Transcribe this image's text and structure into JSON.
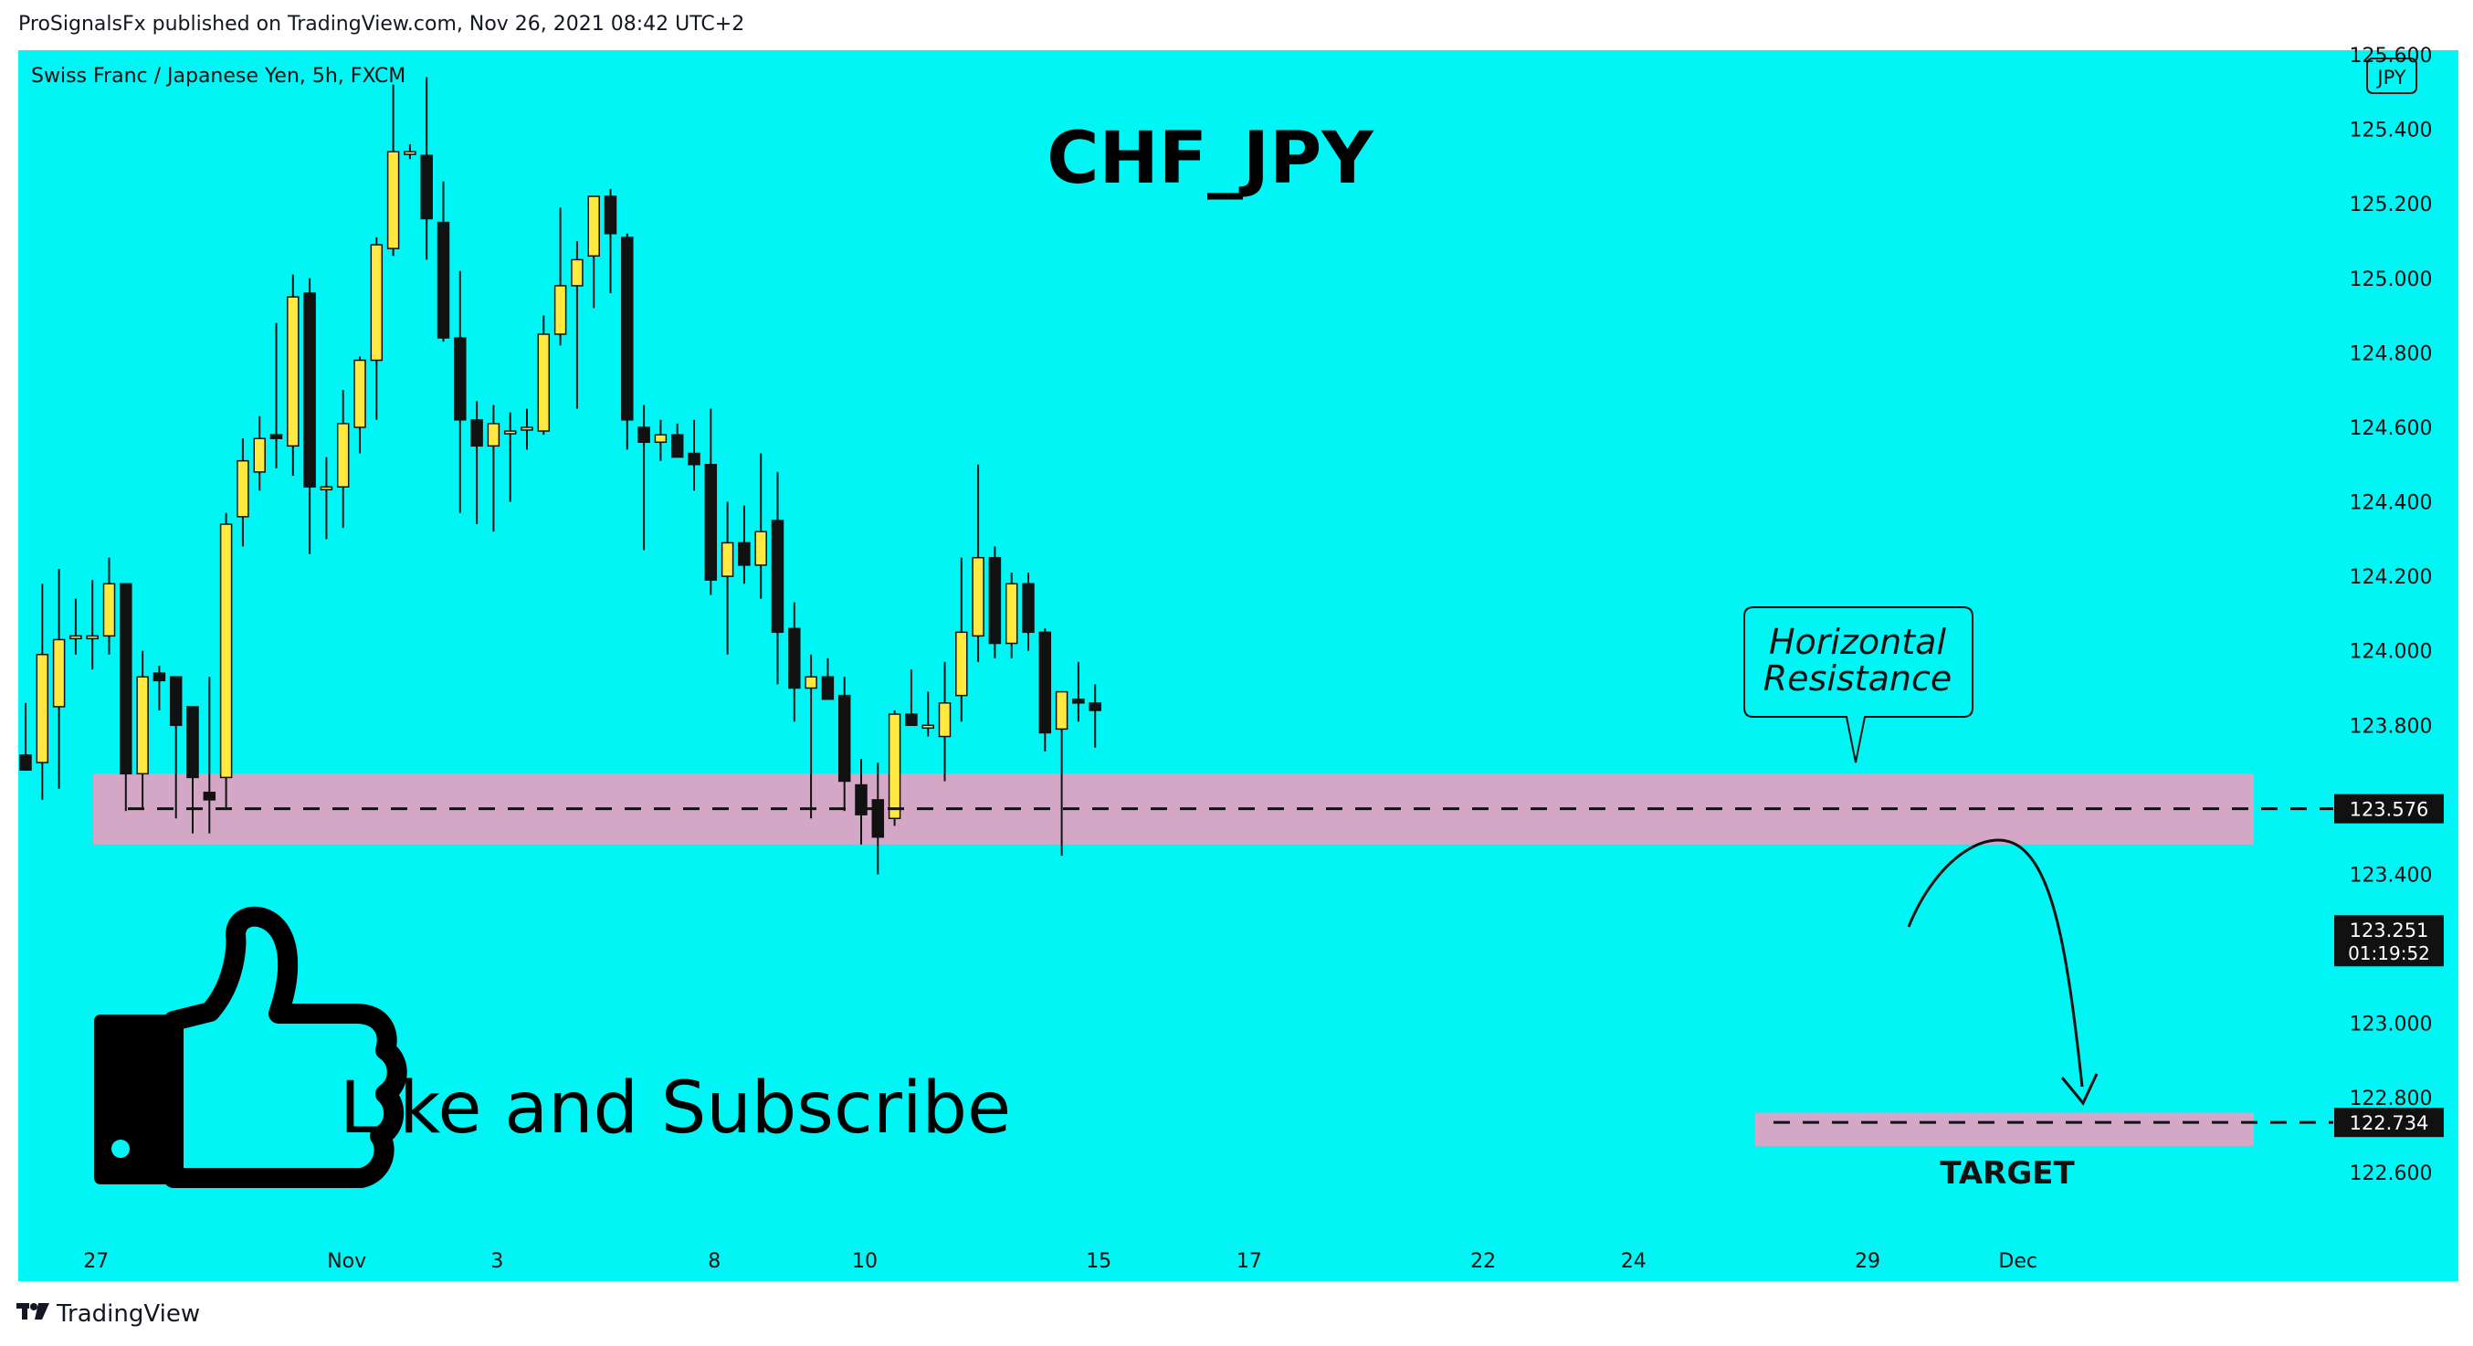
{
  "header": {
    "published": "ProSignalsFx published on TradingView.com, Nov 26, 2021 08:42 UTC+2"
  },
  "footer": {
    "brand": "TradingView"
  },
  "colors": {
    "background": "#00f5f5",
    "bull": "#ffe840",
    "bear": "#111111",
    "zone": "#d4a7c6",
    "text": "#111111"
  },
  "chart_data": {
    "type": "candlestick",
    "symbol": "Swiss Franc / Japanese Yen, 5h, FXCM",
    "title": "CHF_JPY",
    "currency_badge": "JPY",
    "ylim": [
      122.45,
      125.6
    ],
    "y_ticks": [
      "125.600",
      "125.400",
      "125.200",
      "125.000",
      "124.800",
      "124.600",
      "124.400",
      "124.200",
      "124.000",
      "123.800",
      "123.400",
      "123.000",
      "122.800",
      "122.600"
    ],
    "x_ticks": [
      {
        "label": "27",
        "index": 4
      },
      {
        "label": "Nov",
        "index": 19
      },
      {
        "label": "3",
        "index": 28
      },
      {
        "label": "8",
        "index": 41
      },
      {
        "label": "10",
        "index": 50
      },
      {
        "label": "15",
        "index": 64
      },
      {
        "label": "17",
        "index": 73
      },
      {
        "label": "22",
        "index": 87
      },
      {
        "label": "24",
        "index": 96
      },
      {
        "label": "29",
        "index": 110
      },
      {
        "label": "Dec",
        "index": 119
      }
    ],
    "price_labels": [
      {
        "value": "123.576",
        "price": 123.576
      },
      {
        "value": "123.251",
        "price": 123.251,
        "countdown": "01:19:52"
      },
      {
        "value": "122.734",
        "price": 122.734
      }
    ],
    "zones": [
      {
        "name": "resistance",
        "from": 123.48,
        "to": 123.67,
        "start": 4,
        "end": 124
      },
      {
        "name": "target",
        "from": 122.67,
        "to": 122.76,
        "start": 96,
        "end": 124
      }
    ],
    "annotations": {
      "resistance_label": [
        "Horizontal",
        "Resistance"
      ],
      "target_label": "TARGET",
      "cta": "Like and Subscribe"
    },
    "candles": [
      {
        "o": 123.72,
        "h": 123.86,
        "l": 123.68,
        "c": 123.68
      },
      {
        "o": 123.7,
        "h": 124.18,
        "l": 123.6,
        "c": 123.99
      },
      {
        "o": 123.85,
        "h": 124.22,
        "l": 123.63,
        "c": 124.03
      },
      {
        "o": 124.04,
        "h": 124.14,
        "l": 123.99,
        "c": 124.04
      },
      {
        "o": 124.04,
        "h": 124.19,
        "l": 123.95,
        "c": 124.04
      },
      {
        "o": 124.04,
        "h": 124.25,
        "l": 123.99,
        "c": 124.18
      },
      {
        "o": 124.18,
        "h": 124.18,
        "l": 123.57,
        "c": 123.67
      },
      {
        "o": 123.67,
        "h": 124.0,
        "l": 123.58,
        "c": 123.93
      },
      {
        "o": 123.94,
        "h": 123.96,
        "l": 123.84,
        "c": 123.92
      },
      {
        "o": 123.93,
        "h": 123.93,
        "l": 123.55,
        "c": 123.8
      },
      {
        "o": 123.85,
        "h": 123.85,
        "l": 123.51,
        "c": 123.66
      },
      {
        "o": 123.62,
        "h": 123.93,
        "l": 123.51,
        "c": 123.6
      },
      {
        "o": 123.66,
        "h": 124.37,
        "l": 123.58,
        "c": 124.34
      },
      {
        "o": 124.36,
        "h": 124.57,
        "l": 124.28,
        "c": 124.51
      },
      {
        "o": 124.48,
        "h": 124.63,
        "l": 124.43,
        "c": 124.57
      },
      {
        "o": 124.58,
        "h": 124.88,
        "l": 124.49,
        "c": 124.57
      },
      {
        "o": 124.55,
        "h": 125.01,
        "l": 124.47,
        "c": 124.95
      },
      {
        "o": 124.96,
        "h": 125.0,
        "l": 124.26,
        "c": 124.44
      },
      {
        "o": 124.44,
        "h": 124.52,
        "l": 124.3,
        "c": 124.44
      },
      {
        "o": 124.44,
        "h": 124.7,
        "l": 124.33,
        "c": 124.61
      },
      {
        "o": 124.6,
        "h": 124.79,
        "l": 124.53,
        "c": 124.78
      },
      {
        "o": 124.78,
        "h": 125.11,
        "l": 124.62,
        "c": 125.09
      },
      {
        "o": 125.08,
        "h": 125.52,
        "l": 125.06,
        "c": 125.34
      },
      {
        "o": 125.34,
        "h": 125.36,
        "l": 125.32,
        "c": 125.34
      },
      {
        "o": 125.33,
        "h": 125.54,
        "l": 125.05,
        "c": 125.16
      },
      {
        "o": 125.15,
        "h": 125.26,
        "l": 124.83,
        "c": 124.84
      },
      {
        "o": 124.84,
        "h": 125.02,
        "l": 124.37,
        "c": 124.62
      },
      {
        "o": 124.62,
        "h": 124.67,
        "l": 124.34,
        "c": 124.55
      },
      {
        "o": 124.55,
        "h": 124.66,
        "l": 124.32,
        "c": 124.61
      },
      {
        "o": 124.59,
        "h": 124.64,
        "l": 124.4,
        "c": 124.59
      },
      {
        "o": 124.6,
        "h": 124.65,
        "l": 124.54,
        "c": 124.6
      },
      {
        "o": 124.59,
        "h": 124.9,
        "l": 124.58,
        "c": 124.85
      },
      {
        "o": 124.85,
        "h": 125.19,
        "l": 124.82,
        "c": 124.98
      },
      {
        "o": 124.98,
        "h": 125.1,
        "l": 124.65,
        "c": 125.05
      },
      {
        "o": 125.06,
        "h": 125.22,
        "l": 124.92,
        "c": 125.22
      },
      {
        "o": 125.22,
        "h": 125.24,
        "l": 124.96,
        "c": 125.12
      },
      {
        "o": 125.11,
        "h": 125.12,
        "l": 124.54,
        "c": 124.62
      },
      {
        "o": 124.6,
        "h": 124.66,
        "l": 124.27,
        "c": 124.56
      },
      {
        "o": 124.56,
        "h": 124.62,
        "l": 124.51,
        "c": 124.58
      },
      {
        "o": 124.58,
        "h": 124.61,
        "l": 124.52,
        "c": 124.52
      },
      {
        "o": 124.53,
        "h": 124.62,
        "l": 124.43,
        "c": 124.5
      },
      {
        "o": 124.5,
        "h": 124.65,
        "l": 124.15,
        "c": 124.19
      },
      {
        "o": 124.2,
        "h": 124.4,
        "l": 123.99,
        "c": 124.29
      },
      {
        "o": 124.29,
        "h": 124.39,
        "l": 124.18,
        "c": 124.23
      },
      {
        "o": 124.23,
        "h": 124.53,
        "l": 124.14,
        "c": 124.32
      },
      {
        "o": 124.35,
        "h": 124.48,
        "l": 123.91,
        "c": 124.05
      },
      {
        "o": 124.06,
        "h": 124.13,
        "l": 123.81,
        "c": 123.9
      },
      {
        "o": 123.9,
        "h": 123.99,
        "l": 123.55,
        "c": 123.93
      },
      {
        "o": 123.93,
        "h": 123.98,
        "l": 123.88,
        "c": 123.87
      },
      {
        "o": 123.88,
        "h": 123.93,
        "l": 123.57,
        "c": 123.65
      },
      {
        "o": 123.64,
        "h": 123.71,
        "l": 123.48,
        "c": 123.56
      },
      {
        "o": 123.6,
        "h": 123.7,
        "l": 123.4,
        "c": 123.5
      },
      {
        "o": 123.55,
        "h": 123.84,
        "l": 123.53,
        "c": 123.83
      },
      {
        "o": 123.83,
        "h": 123.95,
        "l": 123.8,
        "c": 123.8
      },
      {
        "o": 123.8,
        "h": 123.89,
        "l": 123.77,
        "c": 123.8
      },
      {
        "o": 123.77,
        "h": 123.97,
        "l": 123.65,
        "c": 123.86
      },
      {
        "o": 123.88,
        "h": 124.25,
        "l": 123.81,
        "c": 124.05
      },
      {
        "o": 124.04,
        "h": 124.5,
        "l": 123.97,
        "c": 124.25
      },
      {
        "o": 124.25,
        "h": 124.28,
        "l": 123.98,
        "c": 124.02
      },
      {
        "o": 124.02,
        "h": 124.21,
        "l": 123.98,
        "c": 124.18
      },
      {
        "o": 124.18,
        "h": 124.21,
        "l": 124.0,
        "c": 124.05
      },
      {
        "o": 124.05,
        "h": 124.06,
        "l": 123.73,
        "c": 123.78
      },
      {
        "o": 123.79,
        "h": 123.87,
        "l": 123.45,
        "c": 123.89
      },
      {
        "o": 123.87,
        "h": 123.97,
        "l": 123.81,
        "c": 123.86
      },
      {
        "o": 123.86,
        "h": 123.91,
        "l": 123.74,
        "c": 123.84
      }
    ]
  }
}
